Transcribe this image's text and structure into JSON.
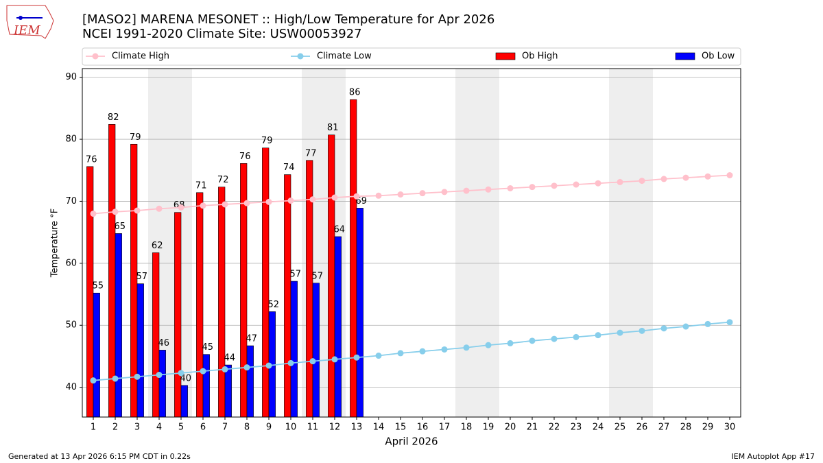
{
  "chart_data": {
    "type": "bar",
    "title": "[MASO2] MARENA MESONET :: High/Low Temperature for Apr 2026",
    "subtitle": "NCEI 1991-2020 Climate Site: USW00053927",
    "xlabel": "April 2026",
    "ylabel": "Temperature °F",
    "logo": "IEM",
    "footer_left": "Generated at 13 Apr 2026 6:15 PM CDT in 0.22s",
    "footer_right": "IEM Autoplot App #17",
    "x": [
      1,
      2,
      3,
      4,
      5,
      6,
      7,
      8,
      9,
      10,
      11,
      12,
      13,
      14,
      15,
      16,
      17,
      18,
      19,
      20,
      21,
      22,
      23,
      24,
      25,
      26,
      27,
      28,
      29,
      30
    ],
    "xlim": [
      0.5,
      30.5
    ],
    "xticks": [
      1,
      2,
      3,
      4,
      5,
      6,
      7,
      8,
      9,
      10,
      11,
      12,
      13,
      14,
      15,
      16,
      17,
      18,
      19,
      20,
      21,
      22,
      23,
      24,
      25,
      26,
      27,
      28,
      29,
      30
    ],
    "ylim": [
      35.2,
      91.4
    ],
    "yticks": [
      40,
      50,
      60,
      70,
      80,
      90
    ],
    "grid": "y",
    "legend": "top",
    "shaded_days": [
      [
        4,
        5
      ],
      [
        11,
        12
      ],
      [
        18,
        19
      ],
      [
        25,
        26
      ]
    ],
    "shade_color": "#eeeeee",
    "series": [
      {
        "name": "Climate High",
        "kind": "line",
        "color": "#ffc0cb",
        "values": [
          68.0,
          68.3,
          68.5,
          68.8,
          69.0,
          69.3,
          69.5,
          69.7,
          69.9,
          70.1,
          70.3,
          70.6,
          70.8,
          70.9,
          71.1,
          71.3,
          71.5,
          71.7,
          71.9,
          72.1,
          72.3,
          72.5,
          72.7,
          72.9,
          73.1,
          73.3,
          73.6,
          73.8,
          74.0,
          74.2
        ]
      },
      {
        "name": "Climate Low",
        "kind": "line",
        "color": "#87ceeb",
        "values": [
          41.1,
          41.4,
          41.7,
          42.0,
          42.3,
          42.6,
          42.9,
          43.2,
          43.5,
          43.9,
          44.2,
          44.5,
          44.8,
          45.1,
          45.5,
          45.8,
          46.1,
          46.4,
          46.8,
          47.1,
          47.5,
          47.8,
          48.1,
          48.4,
          48.8,
          49.1,
          49.5,
          49.8,
          50.2,
          50.5
        ]
      },
      {
        "name": "Ob High",
        "kind": "bar",
        "color": "#ff0000",
        "values": [
          75.6,
          82.4,
          79.2,
          61.7,
          68.2,
          71.4,
          72.3,
          76.1,
          78.6,
          74.3,
          76.6,
          80.7,
          86.4,
          null,
          null,
          null,
          null,
          null,
          null,
          null,
          null,
          null,
          null,
          null,
          null,
          null,
          null,
          null,
          null,
          null
        ],
        "value_labels": [
          "76",
          "82",
          "79",
          "62",
          "68",
          "71",
          "72",
          "76",
          "79",
          "74",
          "77",
          "81",
          "86",
          null,
          null,
          null,
          null,
          null,
          null,
          null,
          null,
          null,
          null,
          null,
          null,
          null,
          null,
          null,
          null,
          null
        ]
      },
      {
        "name": "Ob Low",
        "kind": "bar",
        "color": "#0000ff",
        "values": [
          55.2,
          64.8,
          56.7,
          46.0,
          40.3,
          45.3,
          43.6,
          46.7,
          52.2,
          57.1,
          56.8,
          64.3,
          68.9,
          null,
          null,
          null,
          null,
          null,
          null,
          null,
          null,
          null,
          null,
          null,
          null,
          null,
          null,
          null,
          null,
          null
        ],
        "value_labels": [
          "55",
          "65",
          "57",
          "46",
          "40",
          "45",
          "44",
          "47",
          "52",
          "57",
          "57",
          "64",
          "69",
          null,
          null,
          null,
          null,
          null,
          null,
          null,
          null,
          null,
          null,
          null,
          null,
          null,
          null,
          null,
          null,
          null
        ]
      }
    ]
  }
}
